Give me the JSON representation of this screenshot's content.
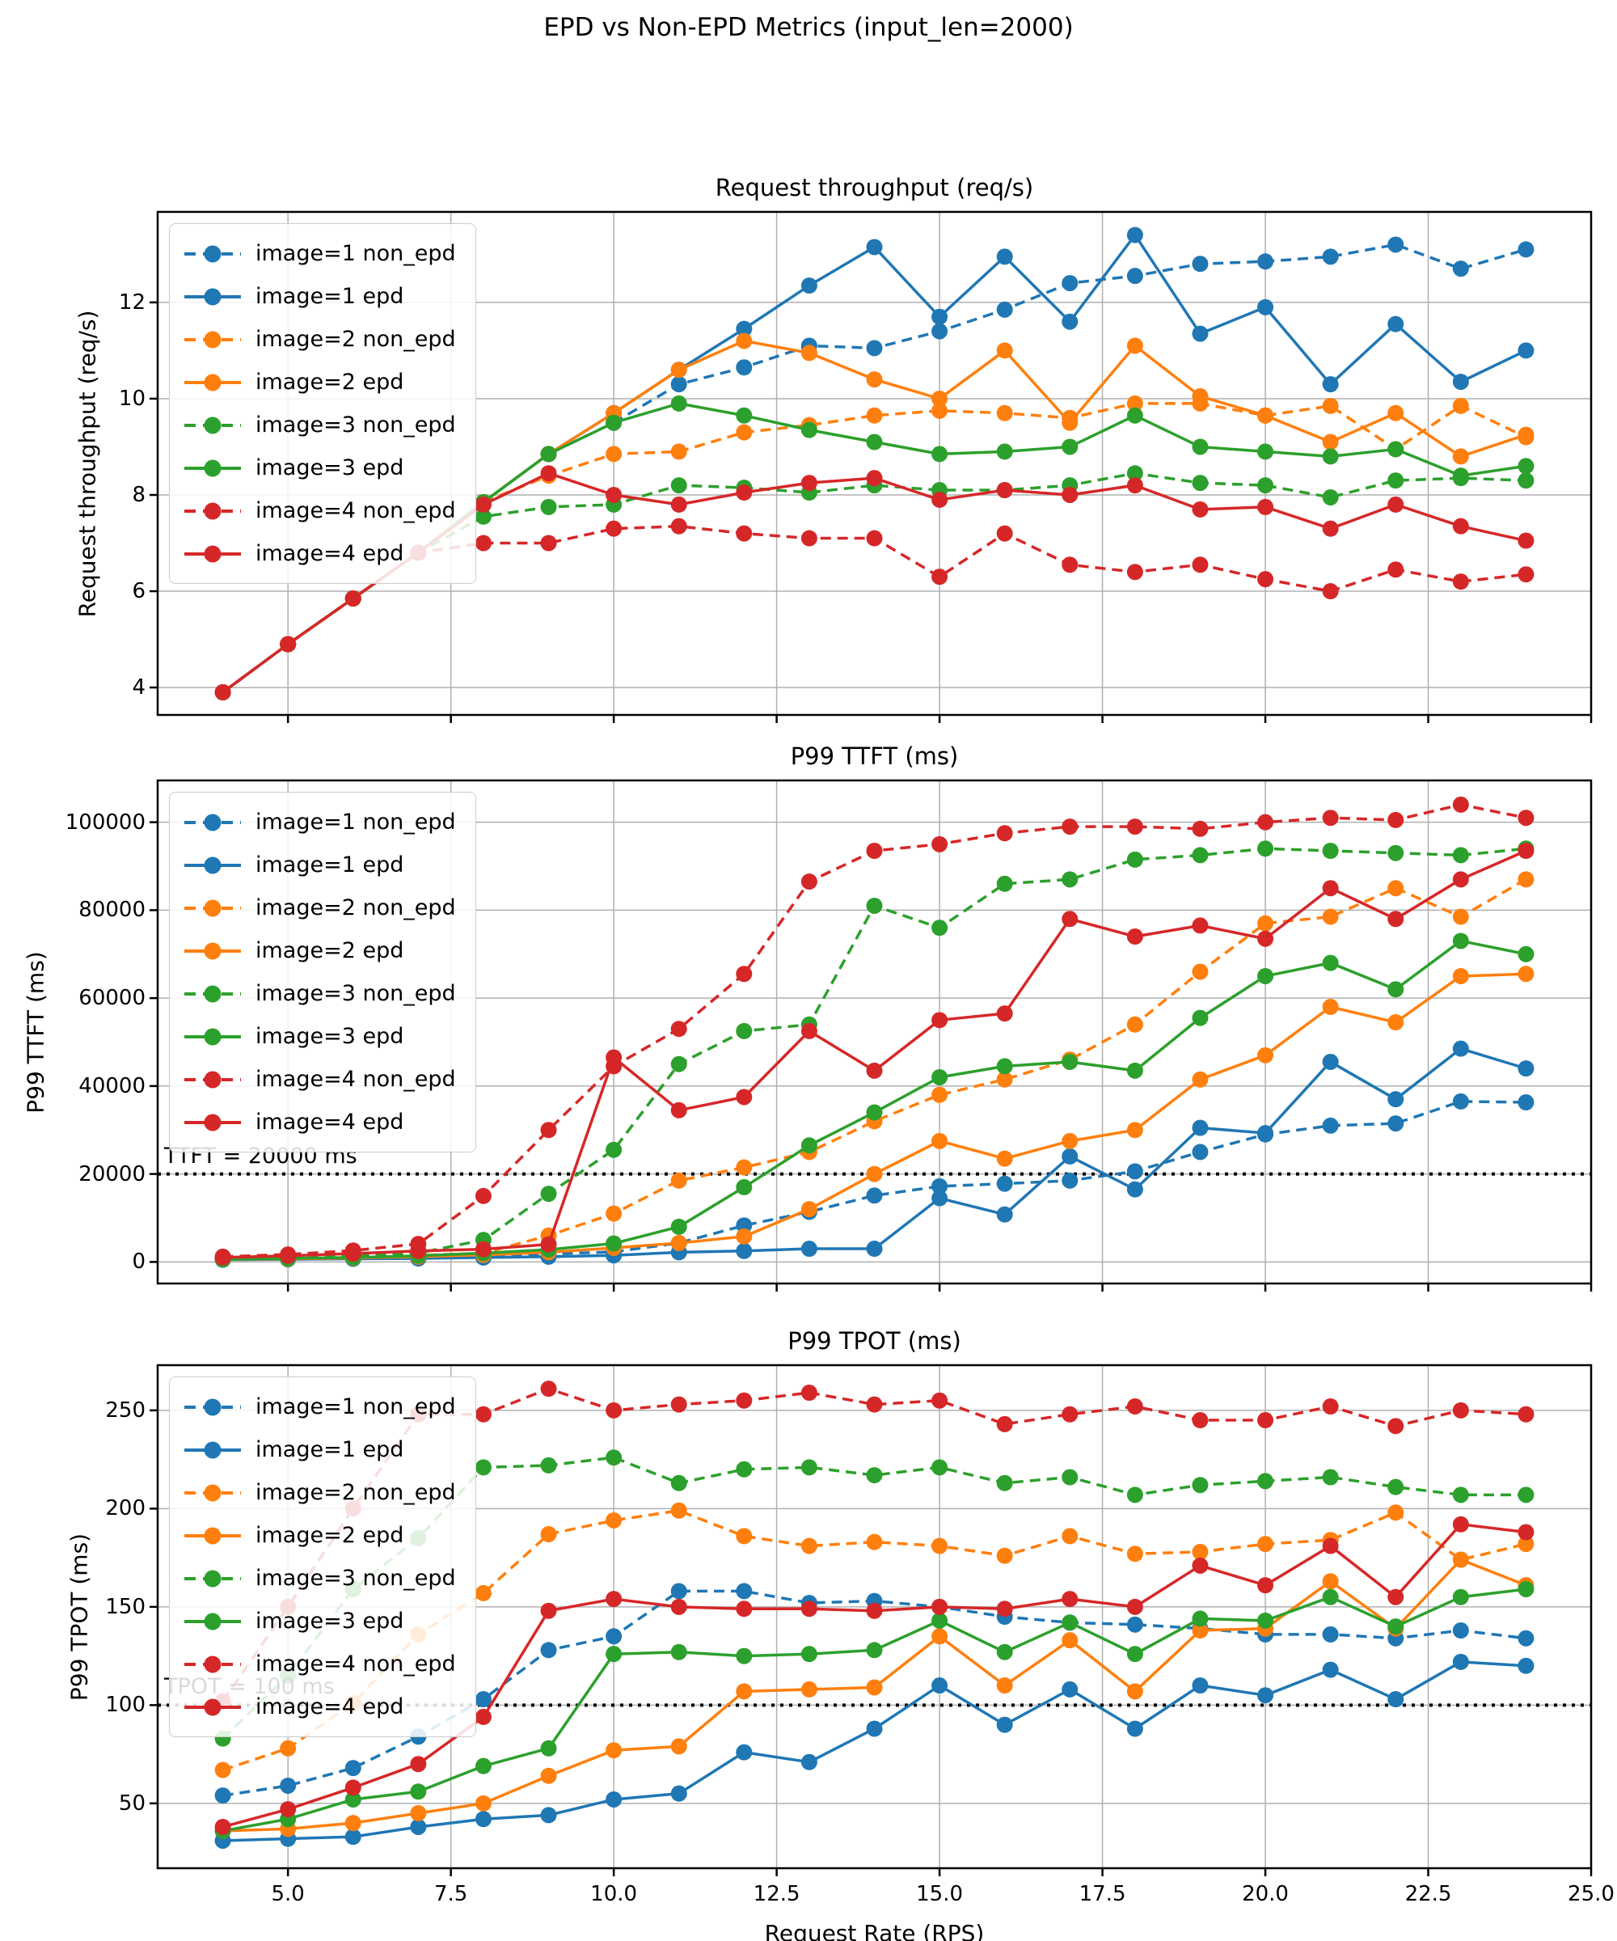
{
  "figure": {
    "suptitle": "EPD vs Non-EPD Metrics (input_len=2000)",
    "xlabel": "Request Rate (RPS)",
    "xlim": [
      3,
      25
    ],
    "xticks": [
      5,
      7.5,
      10,
      12.5,
      15,
      17.5,
      20,
      22.5,
      25
    ],
    "xtick_labels": [
      "5.0",
      "7.5",
      "10.0",
      "12.5",
      "15.0",
      "17.5",
      "20.0",
      "22.5",
      "25.0"
    ],
    "grid_color": "#b0b0b0",
    "series_colors": {
      "image1": "#1f77b4",
      "image2": "#ff7f0e",
      "image3": "#2ca02c",
      "image4": "#d62728"
    }
  },
  "chart_data": [
    {
      "type": "line",
      "title": "Request throughput (req/s)",
      "ylabel": "Request throughput (req/s)",
      "xlabel": "",
      "x": [
        4,
        5,
        6,
        7,
        8,
        9,
        10,
        11,
        12,
        13,
        14,
        15,
        16,
        17,
        18,
        19,
        20,
        21,
        22,
        23,
        24
      ],
      "ylim": [
        3.43,
        13.88
      ],
      "yticks": [
        4,
        6,
        8,
        10,
        12
      ],
      "ytick_labels": [
        "4",
        "6",
        "8",
        "10",
        "12"
      ],
      "grid": true,
      "legend_position": "upper-left",
      "series": [
        {
          "name": "image=1 non_epd",
          "color": "#1f77b4",
          "style": "dashed",
          "values": [
            3.9,
            4.9,
            5.85,
            6.8,
            7.85,
            8.85,
            9.5,
            10.3,
            10.65,
            11.1,
            11.05,
            11.4,
            11.85,
            12.4,
            12.55,
            12.8,
            12.85,
            12.95,
            13.2,
            12.7,
            13.1
          ]
        },
        {
          "name": "image=1 epd",
          "color": "#1f77b4",
          "style": "solid",
          "values": [
            3.9,
            4.9,
            5.85,
            6.8,
            7.85,
            8.85,
            9.7,
            10.6,
            11.45,
            12.35,
            13.15,
            11.7,
            12.95,
            11.6,
            13.4,
            11.35,
            11.9,
            10.3,
            11.55,
            10.35,
            11.0
          ]
        },
        {
          "name": "image=2 non_epd",
          "color": "#ff7f0e",
          "style": "dashed",
          "values": [
            3.9,
            4.9,
            5.85,
            6.8,
            7.85,
            8.4,
            8.85,
            8.9,
            9.3,
            9.45,
            9.65,
            9.75,
            9.7,
            9.6,
            9.9,
            9.9,
            9.65,
            9.85,
            8.95,
            9.85,
            9.2
          ]
        },
        {
          "name": "image=2 epd",
          "color": "#ff7f0e",
          "style": "solid",
          "values": [
            3.9,
            4.9,
            5.85,
            6.8,
            7.85,
            8.85,
            9.7,
            10.6,
            11.2,
            10.95,
            10.4,
            10.0,
            11.0,
            9.5,
            11.1,
            10.05,
            9.65,
            9.1,
            9.7,
            8.8,
            9.25
          ]
        },
        {
          "name": "image=3 non_epd",
          "color": "#2ca02c",
          "style": "dashed",
          "values": [
            3.9,
            4.9,
            5.85,
            6.8,
            7.55,
            7.75,
            7.8,
            8.2,
            8.15,
            8.05,
            8.2,
            8.1,
            8.1,
            8.2,
            8.45,
            8.25,
            8.2,
            7.95,
            8.3,
            8.35,
            8.3
          ]
        },
        {
          "name": "image=3 epd",
          "color": "#2ca02c",
          "style": "solid",
          "values": [
            3.9,
            4.9,
            5.85,
            6.8,
            7.85,
            8.85,
            9.5,
            9.9,
            9.65,
            9.35,
            9.1,
            8.85,
            8.9,
            9.0,
            9.65,
            9.0,
            8.9,
            8.8,
            8.95,
            8.4,
            8.6
          ]
        },
        {
          "name": "image=4 non_epd",
          "color": "#d62728",
          "style": "dashed",
          "values": [
            3.9,
            4.9,
            5.85,
            6.8,
            7.0,
            7.0,
            7.3,
            7.35,
            7.2,
            7.1,
            7.1,
            6.3,
            7.2,
            6.55,
            6.4,
            6.55,
            6.25,
            6.0,
            6.45,
            6.2,
            6.35
          ]
        },
        {
          "name": "image=4 epd",
          "color": "#d62728",
          "style": "solid",
          "values": [
            3.9,
            4.9,
            5.85,
            6.8,
            7.8,
            8.45,
            8.0,
            7.8,
            8.05,
            8.25,
            8.35,
            7.9,
            8.1,
            8.0,
            8.2,
            7.7,
            7.75,
            7.3,
            7.8,
            7.35,
            7.05
          ]
        }
      ]
    },
    {
      "type": "line",
      "title": "P99 TTFT (ms)",
      "ylabel": "P99 TTFT (ms)",
      "xlabel": "",
      "x": [
        4,
        5,
        6,
        7,
        8,
        9,
        10,
        11,
        12,
        13,
        14,
        15,
        16,
        17,
        18,
        19,
        20,
        21,
        22,
        23,
        24
      ],
      "ylim": [
        -4900,
        109500
      ],
      "yticks": [
        0,
        20000,
        40000,
        60000,
        80000,
        100000
      ],
      "ytick_labels": [
        "0",
        "20000",
        "40000",
        "60000",
        "80000",
        "100000"
      ],
      "grid": true,
      "legend_position": "upper-left",
      "threshold": {
        "value": 20000,
        "label": "TTFT = 20000 ms"
      },
      "series": [
        {
          "name": "image=1 non_epd",
          "color": "#1f77b4",
          "style": "dashed",
          "values": [
            700,
            800,
            900,
            1100,
            1400,
            1800,
            2300,
            4300,
            8300,
            11400,
            15100,
            17200,
            17800,
            18500,
            20600,
            25000,
            29000,
            31000,
            31500,
            36500,
            36300
          ]
        },
        {
          "name": "image=1 epd",
          "color": "#1f77b4",
          "style": "solid",
          "values": [
            500,
            600,
            700,
            800,
            1000,
            1200,
            1500,
            2200,
            2500,
            3000,
            3000,
            14500,
            10800,
            24000,
            16500,
            30500,
            29300,
            45500,
            37000,
            48500,
            44000
          ]
        },
        {
          "name": "image=2 non_epd",
          "color": "#ff7f0e",
          "style": "dashed",
          "values": [
            700,
            900,
            1100,
            1500,
            2000,
            6000,
            11000,
            18500,
            21500,
            25000,
            32000,
            38000,
            41500,
            46000,
            54000,
            66000,
            77000,
            78500,
            85000,
            78500,
            87000
          ]
        },
        {
          "name": "image=2 epd",
          "color": "#ff7f0e",
          "style": "solid",
          "values": [
            600,
            700,
            900,
            1200,
            1600,
            2200,
            3200,
            4300,
            5800,
            12000,
            20000,
            27500,
            23500,
            27500,
            30000,
            41500,
            47000,
            58000,
            54500,
            65000,
            65500
          ]
        },
        {
          "name": "image=3 non_epd",
          "color": "#2ca02c",
          "style": "dashed",
          "values": [
            800,
            1000,
            1300,
            2000,
            5000,
            15500,
            25500,
            45000,
            52500,
            54000,
            81000,
            76000,
            86000,
            87000,
            91500,
            92500,
            94000,
            93500,
            93000,
            92500,
            94000
          ]
        },
        {
          "name": "image=3 epd",
          "color": "#2ca02c",
          "style": "solid",
          "values": [
            600,
            800,
            1000,
            1400,
            2000,
            2800,
            4200,
            8000,
            17000,
            26500,
            34000,
            42000,
            44500,
            45500,
            43500,
            55500,
            65000,
            68000,
            62000,
            73000,
            70000
          ]
        },
        {
          "name": "image=4 non_epd",
          "color": "#d62728",
          "style": "dashed",
          "values": [
            1200,
            1700,
            2600,
            4100,
            15000,
            30000,
            44500,
            53000,
            65500,
            86500,
            93500,
            95000,
            97500,
            99000,
            99000,
            98500,
            100000,
            101000,
            100500,
            104000,
            101000
          ]
        },
        {
          "name": "image=4 epd",
          "color": "#d62728",
          "style": "solid",
          "values": [
            1000,
            1400,
            1900,
            2500,
            2900,
            4000,
            46500,
            34500,
            37500,
            52500,
            43500,
            55000,
            56500,
            78000,
            74000,
            76500,
            73500,
            85000,
            78000,
            87000,
            93500
          ]
        }
      ]
    },
    {
      "type": "line",
      "title": "P99 TPOT (ms)",
      "ylabel": "P99 TPOT (ms)",
      "xlabel": "Request Rate (RPS)",
      "x": [
        4,
        5,
        6,
        7,
        8,
        9,
        10,
        11,
        12,
        13,
        14,
        15,
        16,
        17,
        18,
        19,
        20,
        21,
        22,
        23,
        24
      ],
      "ylim": [
        17,
        273
      ],
      "yticks": [
        50,
        100,
        150,
        200,
        250
      ],
      "ytick_labels": [
        "50",
        "100",
        "150",
        "200",
        "250"
      ],
      "grid": true,
      "legend_position": "upper-left",
      "threshold": {
        "value": 100,
        "label": "TPOT = 100 ms"
      },
      "series": [
        {
          "name": "image=1 non_epd",
          "color": "#1f77b4",
          "style": "dashed",
          "values": [
            54,
            59,
            68,
            84,
            103,
            128,
            135,
            158,
            158,
            152,
            153,
            150,
            145,
            142,
            141,
            139,
            136,
            136,
            134,
            138,
            134
          ]
        },
        {
          "name": "image=1 epd",
          "color": "#1f77b4",
          "style": "solid",
          "values": [
            31,
            32,
            33,
            38,
            42,
            44,
            52,
            55,
            76,
            71,
            88,
            110,
            90,
            108,
            88,
            110,
            105,
            118,
            103,
            122,
            120
          ]
        },
        {
          "name": "image=2 non_epd",
          "color": "#ff7f0e",
          "style": "dashed",
          "values": [
            67,
            78,
            101,
            136,
            157,
            187,
            194,
            199,
            186,
            181,
            183,
            181,
            176,
            186,
            177,
            178,
            182,
            184,
            198,
            174,
            182
          ]
        },
        {
          "name": "image=2 epd",
          "color": "#ff7f0e",
          "style": "solid",
          "values": [
            36,
            37,
            40,
            45,
            50,
            64,
            77,
            79,
            107,
            108,
            109,
            135,
            110,
            133,
            107,
            138,
            139,
            163,
            139,
            174,
            161
          ]
        },
        {
          "name": "image=3 non_epd",
          "color": "#2ca02c",
          "style": "dashed",
          "values": [
            83,
            115,
            159,
            185,
            221,
            222,
            226,
            213,
            220,
            221,
            217,
            221,
            213,
            216,
            207,
            212,
            214,
            216,
            211,
            207,
            207
          ]
        },
        {
          "name": "image=3 epd",
          "color": "#2ca02c",
          "style": "solid",
          "values": [
            36,
            42,
            52,
            56,
            69,
            78,
            126,
            127,
            125,
            126,
            128,
            143,
            127,
            142,
            126,
            144,
            143,
            155,
            140,
            155,
            159
          ]
        },
        {
          "name": "image=4 non_epd",
          "color": "#d62728",
          "style": "dashed",
          "values": [
            102,
            150,
            200,
            248,
            248,
            261,
            250,
            253,
            255,
            259,
            253,
            255,
            243,
            248,
            252,
            245,
            245,
            252,
            242,
            250,
            248
          ]
        },
        {
          "name": "image=4 epd",
          "color": "#d62728",
          "style": "solid",
          "values": [
            38,
            47,
            58,
            70,
            94,
            148,
            154,
            150,
            149,
            149,
            148,
            150,
            149,
            154,
            150,
            171,
            161,
            181,
            155,
            192,
            188
          ]
        }
      ]
    }
  ]
}
